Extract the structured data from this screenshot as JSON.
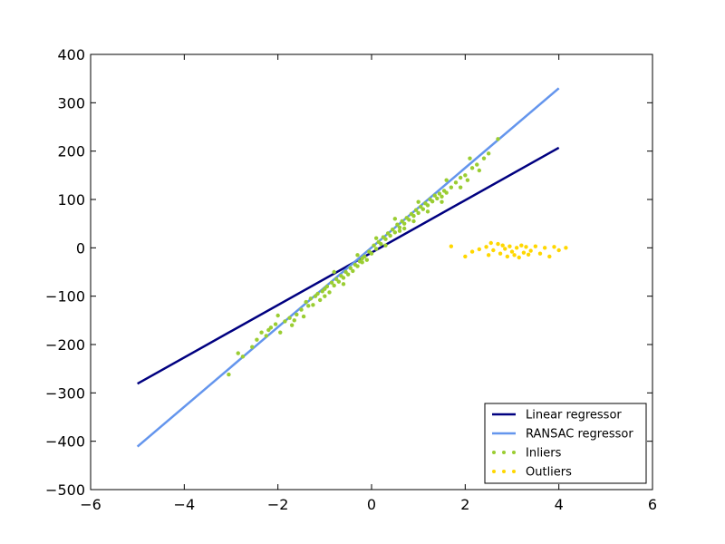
{
  "chart_data": {
    "type": "scatter",
    "title": "",
    "xlabel": "",
    "ylabel": "",
    "xlim": [
      -6,
      6
    ],
    "ylim": [
      -500,
      400
    ],
    "x_ticks": [
      -6,
      -4,
      -2,
      0,
      2,
      4,
      6
    ],
    "y_ticks": [
      -500,
      -400,
      -300,
      -200,
      -100,
      0,
      100,
      200,
      300,
      400
    ],
    "x_tick_labels": [
      "−6",
      "−4",
      "−2",
      "0",
      "2",
      "4",
      "6"
    ],
    "y_tick_labels": [
      "−500",
      "−400",
      "−300",
      "−200",
      "−100",
      "0",
      "100",
      "200",
      "300",
      "400"
    ],
    "grid": false,
    "legend_position": "bottom-right",
    "lines": [
      {
        "name": "Linear regressor",
        "color": "#000080",
        "x": [
          -5,
          4
        ],
        "y": [
          -281,
          207
        ]
      },
      {
        "name": "RANSAC regressor",
        "color": "#6495ED",
        "x": [
          -5,
          4
        ],
        "y": [
          -411,
          330
        ]
      }
    ],
    "scatter_series": [
      {
        "name": "Inliers",
        "color": "#9ACD32",
        "points": [
          [
            -3.05,
            -262
          ],
          [
            -2.85,
            -218
          ],
          [
            -2.75,
            -225
          ],
          [
            -2.55,
            -205
          ],
          [
            -2.45,
            -190
          ],
          [
            -2.35,
            -175
          ],
          [
            -2.25,
            -182
          ],
          [
            -2.2,
            -170
          ],
          [
            -2.15,
            -165
          ],
          [
            -2.05,
            -158
          ],
          [
            -1.95,
            -175
          ],
          [
            -1.85,
            -152
          ],
          [
            -1.75,
            -145
          ],
          [
            -1.7,
            -160
          ],
          [
            -1.6,
            -138
          ],
          [
            -1.5,
            -128
          ],
          [
            -1.45,
            -142
          ],
          [
            -1.4,
            -112
          ],
          [
            -1.35,
            -120
          ],
          [
            -1.3,
            -105
          ],
          [
            -1.25,
            -118
          ],
          [
            -1.2,
            -100
          ],
          [
            -1.15,
            -95
          ],
          [
            -1.1,
            -108
          ],
          [
            -1.05,
            -90
          ],
          [
            -1.0,
            -85
          ],
          [
            -0.95,
            -80
          ],
          [
            -0.9,
            -92
          ],
          [
            -0.85,
            -72
          ],
          [
            -0.8,
            -78
          ],
          [
            -0.75,
            -65
          ],
          [
            -0.7,
            -70
          ],
          [
            -0.65,
            -58
          ],
          [
            -0.6,
            -62
          ],
          [
            -0.55,
            -50
          ],
          [
            -0.5,
            -55
          ],
          [
            -0.45,
            -42
          ],
          [
            -0.4,
            -48
          ],
          [
            -0.35,
            -35
          ],
          [
            -0.3,
            -38
          ],
          [
            -0.25,
            -28
          ],
          [
            -0.2,
            -22
          ],
          [
            -0.15,
            -18
          ],
          [
            -0.1,
            -25
          ],
          [
            -0.05,
            -8
          ],
          [
            0.0,
            -12
          ],
          [
            0.05,
            5
          ],
          [
            0.1,
            -2
          ],
          [
            0.15,
            12
          ],
          [
            0.2,
            8
          ],
          [
            0.25,
            22
          ],
          [
            0.3,
            18
          ],
          [
            0.35,
            30
          ],
          [
            0.4,
            25
          ],
          [
            0.45,
            38
          ],
          [
            0.5,
            32
          ],
          [
            0.55,
            48
          ],
          [
            0.6,
            42
          ],
          [
            0.65,
            55
          ],
          [
            0.7,
            50
          ],
          [
            0.75,
            62
          ],
          [
            0.8,
            58
          ],
          [
            0.85,
            70
          ],
          [
            0.9,
            66
          ],
          [
            0.95,
            78
          ],
          [
            1.0,
            72
          ],
          [
            1.05,
            85
          ],
          [
            1.1,
            80
          ],
          [
            1.15,
            92
          ],
          [
            1.2,
            88
          ],
          [
            1.25,
            100
          ],
          [
            1.3,
            96
          ],
          [
            1.35,
            108
          ],
          [
            1.4,
            102
          ],
          [
            1.45,
            112
          ],
          [
            1.5,
            106
          ],
          [
            1.55,
            118
          ],
          [
            1.6,
            114
          ],
          [
            1.7,
            125
          ],
          [
            1.8,
            135
          ],
          [
            1.9,
            145
          ],
          [
            2.0,
            150
          ],
          [
            2.05,
            140
          ],
          [
            2.15,
            165
          ],
          [
            2.25,
            172
          ],
          [
            2.4,
            185
          ],
          [
            2.5,
            195
          ],
          [
            2.7,
            225
          ],
          [
            -1.65,
            -150
          ],
          [
            -1.0,
            -100
          ],
          [
            -0.6,
            -75
          ],
          [
            -0.2,
            -30
          ],
          [
            0.3,
            5
          ],
          [
            0.6,
            35
          ],
          [
            0.9,
            55
          ],
          [
            1.2,
            75
          ],
          [
            1.5,
            95
          ],
          [
            1.9,
            125
          ],
          [
            -2.0,
            -140
          ],
          [
            -0.3,
            -15
          ],
          [
            0.1,
            20
          ],
          [
            0.5,
            60
          ],
          [
            1.0,
            95
          ],
          [
            1.6,
            140
          ],
          [
            2.1,
            185
          ],
          [
            2.3,
            160
          ],
          [
            -0.8,
            -50
          ],
          [
            0.7,
            40
          ]
        ]
      },
      {
        "name": "Outliers",
        "color": "#FFD700",
        "points": [
          [
            1.7,
            3
          ],
          [
            2.0,
            -18
          ],
          [
            2.15,
            -8
          ],
          [
            2.3,
            -3
          ],
          [
            2.45,
            2
          ],
          [
            2.5,
            -15
          ],
          [
            2.6,
            -5
          ],
          [
            2.7,
            8
          ],
          [
            2.75,
            -12
          ],
          [
            2.8,
            5
          ],
          [
            2.85,
            -2
          ],
          [
            2.9,
            -18
          ],
          [
            2.95,
            3
          ],
          [
            3.0,
            -8
          ],
          [
            3.05,
            -15
          ],
          [
            3.1,
            0
          ],
          [
            3.15,
            -20
          ],
          [
            3.2,
            5
          ],
          [
            3.25,
            -10
          ],
          [
            3.3,
            2
          ],
          [
            3.4,
            -6
          ],
          [
            3.5,
            3
          ],
          [
            3.6,
            -12
          ],
          [
            3.7,
            0
          ],
          [
            3.8,
            -18
          ],
          [
            3.9,
            2
          ],
          [
            4.0,
            -5
          ],
          [
            4.15,
            0
          ],
          [
            2.55,
            10
          ],
          [
            3.35,
            -14
          ]
        ]
      }
    ]
  }
}
